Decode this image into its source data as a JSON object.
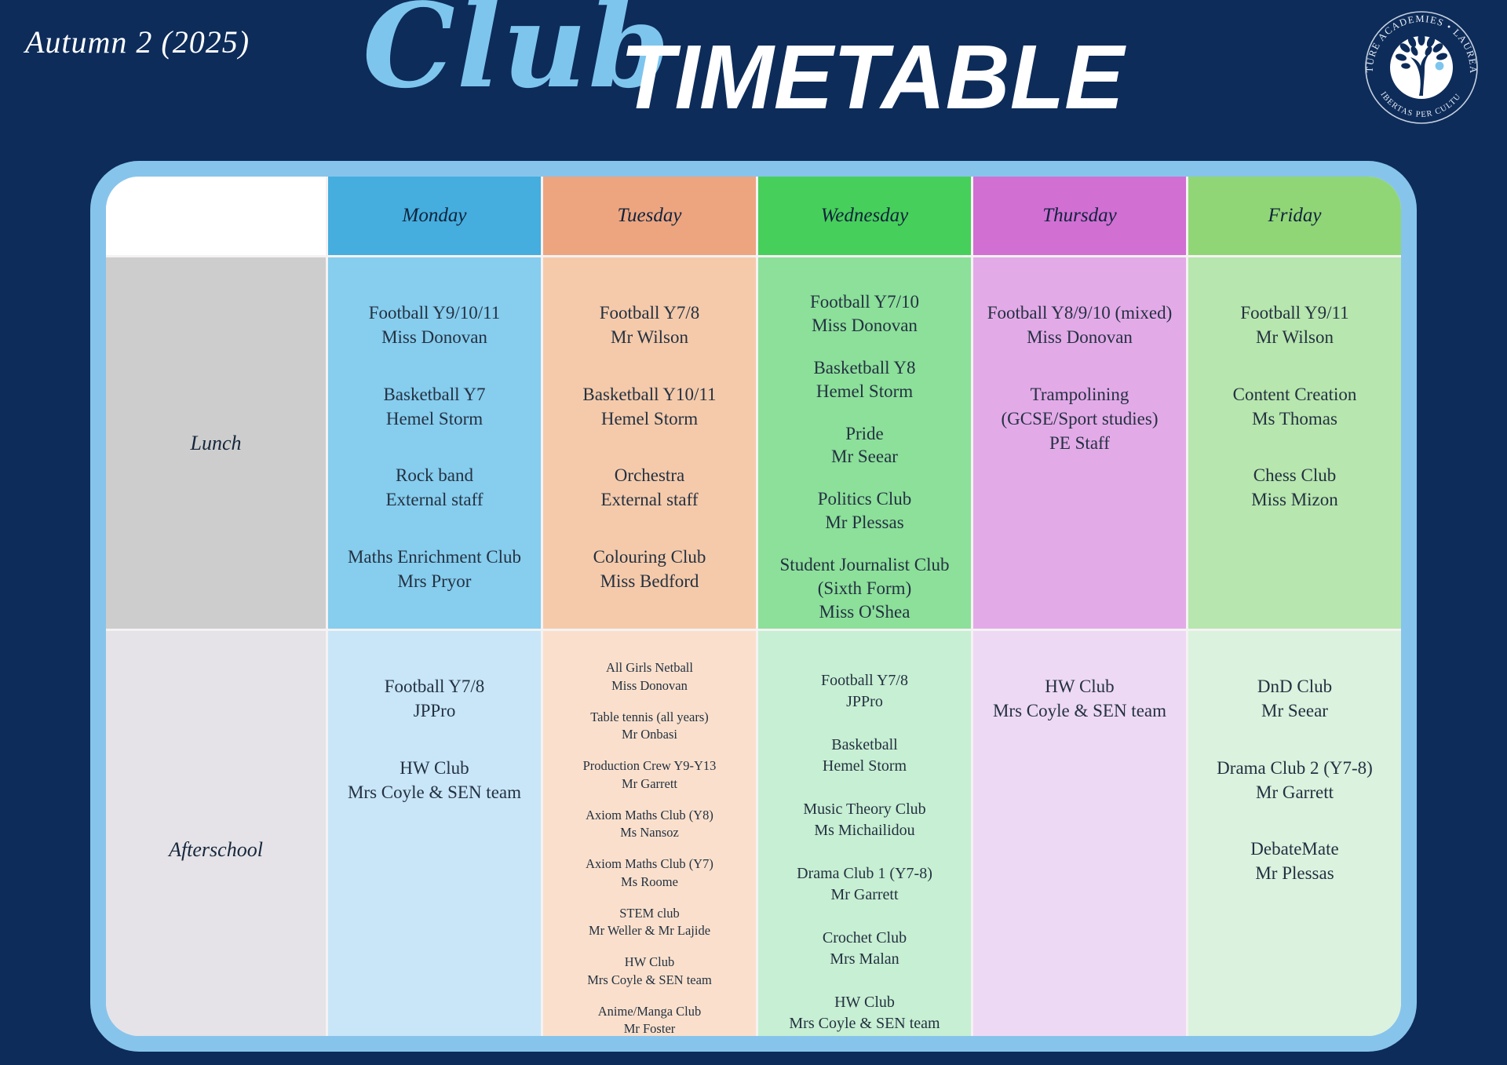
{
  "header": {
    "term": "Autumn 2 (2025)",
    "title_script": "Club",
    "title_block": "TIMETABLE",
    "logo_arc_top": "FUTURE ACADEMIES • LAUREATE",
    "logo_arc_bottom": "LIBERTAS PER CULTUM"
  },
  "colors": {
    "background": "#0d2c5a",
    "frame": "#87c4ec",
    "title_script": "#7ec5ee",
    "title_block": "#ffffff",
    "row_label_lunch_bg": "#cdcdcd",
    "row_label_afterschool_bg": "#e5e3e7",
    "days": {
      "monday": {
        "header": "#45aede",
        "lunch": "#86cdee",
        "afterschool": "#c8e6f8"
      },
      "tuesday": {
        "header": "#eda580",
        "lunch": "#f5caaa",
        "afterschool": "#fae0cc"
      },
      "wednesday": {
        "header": "#47cf5b",
        "lunch": "#8ce09a",
        "afterschool": "#c7efd3"
      },
      "thursday": {
        "header": "#d16fd3",
        "lunch": "#e3aae8",
        "afterschool": "#eed9f4"
      },
      "friday": {
        "header": "#90d677",
        "lunch": "#b7e6ae",
        "afterschool": "#dbf2de"
      }
    }
  },
  "table": {
    "day_labels": [
      "Monday",
      "Tuesday",
      "Wednesday",
      "Thursday",
      "Friday"
    ],
    "row_labels": [
      "Lunch",
      "Afterschool"
    ],
    "lunch": [
      [
        [
          "Football Y9/10/11",
          "Miss Donovan"
        ],
        [
          "Basketball Y7",
          "Hemel Storm"
        ],
        [
          "Rock band",
          "External staff"
        ],
        [
          "Maths Enrichment Club",
          "Mrs Pryor"
        ]
      ],
      [
        [
          "Football Y7/8",
          "Mr Wilson"
        ],
        [
          "Basketball Y10/11",
          "Hemel Storm"
        ],
        [
          "Orchestra",
          "External staff"
        ],
        [
          "Colouring Club",
          "Miss Bedford"
        ]
      ],
      [
        [
          "Football Y7/10",
          "Miss Donovan"
        ],
        [
          "Basketball Y8",
          "Hemel Storm"
        ],
        [
          "Pride",
          "Mr Seear"
        ],
        [
          "Politics Club",
          "Mr Plessas"
        ],
        [
          "Student Journalist Club",
          "(Sixth Form)",
          "Miss O'Shea"
        ]
      ],
      [
        [
          "Football Y8/9/10 (mixed)",
          "Miss Donovan"
        ],
        [
          "Trampolining",
          "(GCSE/Sport studies)",
          "PE Staff"
        ]
      ],
      [
        [
          "Football Y9/11",
          "Mr Wilson"
        ],
        [
          "Content Creation",
          "Ms Thomas"
        ],
        [
          "Chess Club",
          "Miss Mizon"
        ]
      ]
    ],
    "afterschool": [
      [
        [
          "Football Y7/8",
          "JPPro"
        ],
        [
          "HW Club",
          "Mrs Coyle & SEN team"
        ]
      ],
      [
        [
          "All Girls Netball",
          "Miss Donovan"
        ],
        [
          "Table tennis (all years)",
          "Mr Onbasi"
        ],
        [
          "Production Crew Y9-Y13",
          "Mr Garrett"
        ],
        [
          "Axiom Maths Club (Y8)",
          "Ms Nansoz"
        ],
        [
          "Axiom Maths Club (Y7)",
          "Ms Roome"
        ],
        [
          "STEM club",
          "Mr Weller & Mr Lajide"
        ],
        [
          "HW Club",
          "Mrs Coyle & SEN team"
        ],
        [
          "Anime/Manga Club",
          "Mr Foster"
        ]
      ],
      [
        [
          "Football Y7/8",
          "JPPro"
        ],
        [
          "Basketball",
          "Hemel Storm"
        ],
        [
          "Music Theory Club",
          "Ms Michailidou"
        ],
        [
          "Drama Club 1 (Y7-8)",
          "Mr Garrett"
        ],
        [
          "Crochet Club",
          "Mrs Malan"
        ],
        [
          "HW Club",
          "Mrs Coyle & SEN team"
        ]
      ],
      [
        [
          "HW Club",
          "Mrs Coyle & SEN team"
        ]
      ],
      [
        [
          "DnD Club",
          "Mr Seear"
        ],
        [
          "Drama Club 2 (Y7-8)",
          "Mr Garrett"
        ],
        [
          "DebateMate",
          "Mr Plessas"
        ]
      ]
    ]
  }
}
